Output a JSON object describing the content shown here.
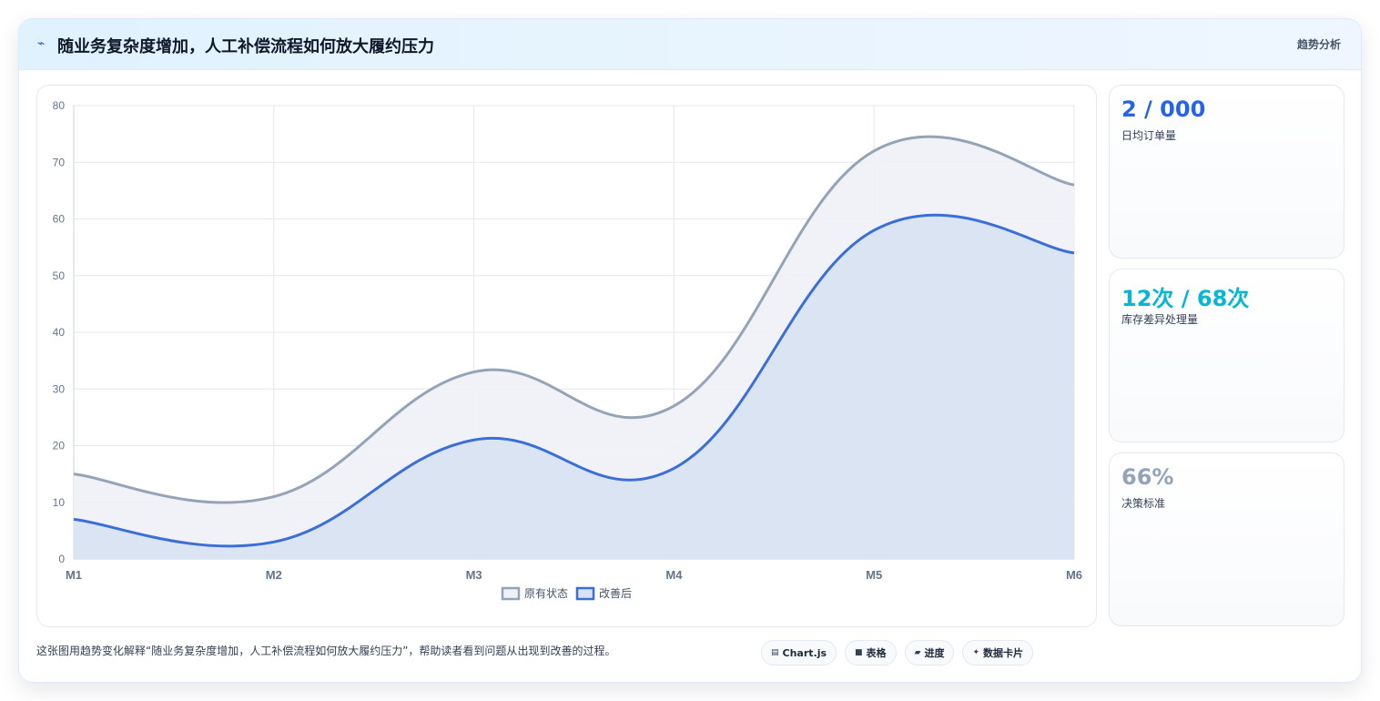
{
  "header": {
    "icon": "trend-line-icon",
    "title": "随业务复杂度增加，人工补偿流程如何放大履约压力",
    "tag": "趋势分析"
  },
  "stats": [
    {
      "value": "2 / 000",
      "label": "日均订单量",
      "color": "#2563eb"
    },
    {
      "value": "12次 / 68次",
      "label": "库存差异处理量",
      "color": "#06b6d4"
    },
    {
      "value": "66%",
      "label": "决策标准",
      "color": "#94a3b8"
    }
  ],
  "footer": {
    "description": "这张图用趋势变化解释“随业务复杂度增加，人工补偿流程如何放大履约压力”，帮助读者看到问题从出现到改善的过程。",
    "chips": [
      {
        "icon": "chart-icon",
        "label": "Chart.js"
      },
      {
        "icon": "table-icon",
        "label": "表格"
      },
      {
        "icon": "progress-icon",
        "label": "进度"
      },
      {
        "icon": "sparkle-icon",
        "label": "数据卡片"
      }
    ]
  },
  "chart_data": {
    "type": "area",
    "categories": [
      "M1",
      "M2",
      "M3",
      "M4",
      "M5",
      "M6"
    ],
    "ylim": [
      0,
      80
    ],
    "yticks": [
      0,
      10,
      20,
      30,
      40,
      50,
      60,
      70,
      80
    ],
    "grid": true,
    "legend_position": "bottom",
    "series": [
      {
        "name": "原有状态",
        "values": [
          15,
          11,
          33,
          27,
          72,
          66
        ],
        "color": "#94a3b8",
        "fill": "#eef1f6"
      },
      {
        "name": "改善后",
        "values": [
          7,
          3,
          21,
          16,
          58,
          54
        ],
        "color": "#3b6fd8",
        "fill": "#d8e2f1"
      }
    ]
  }
}
